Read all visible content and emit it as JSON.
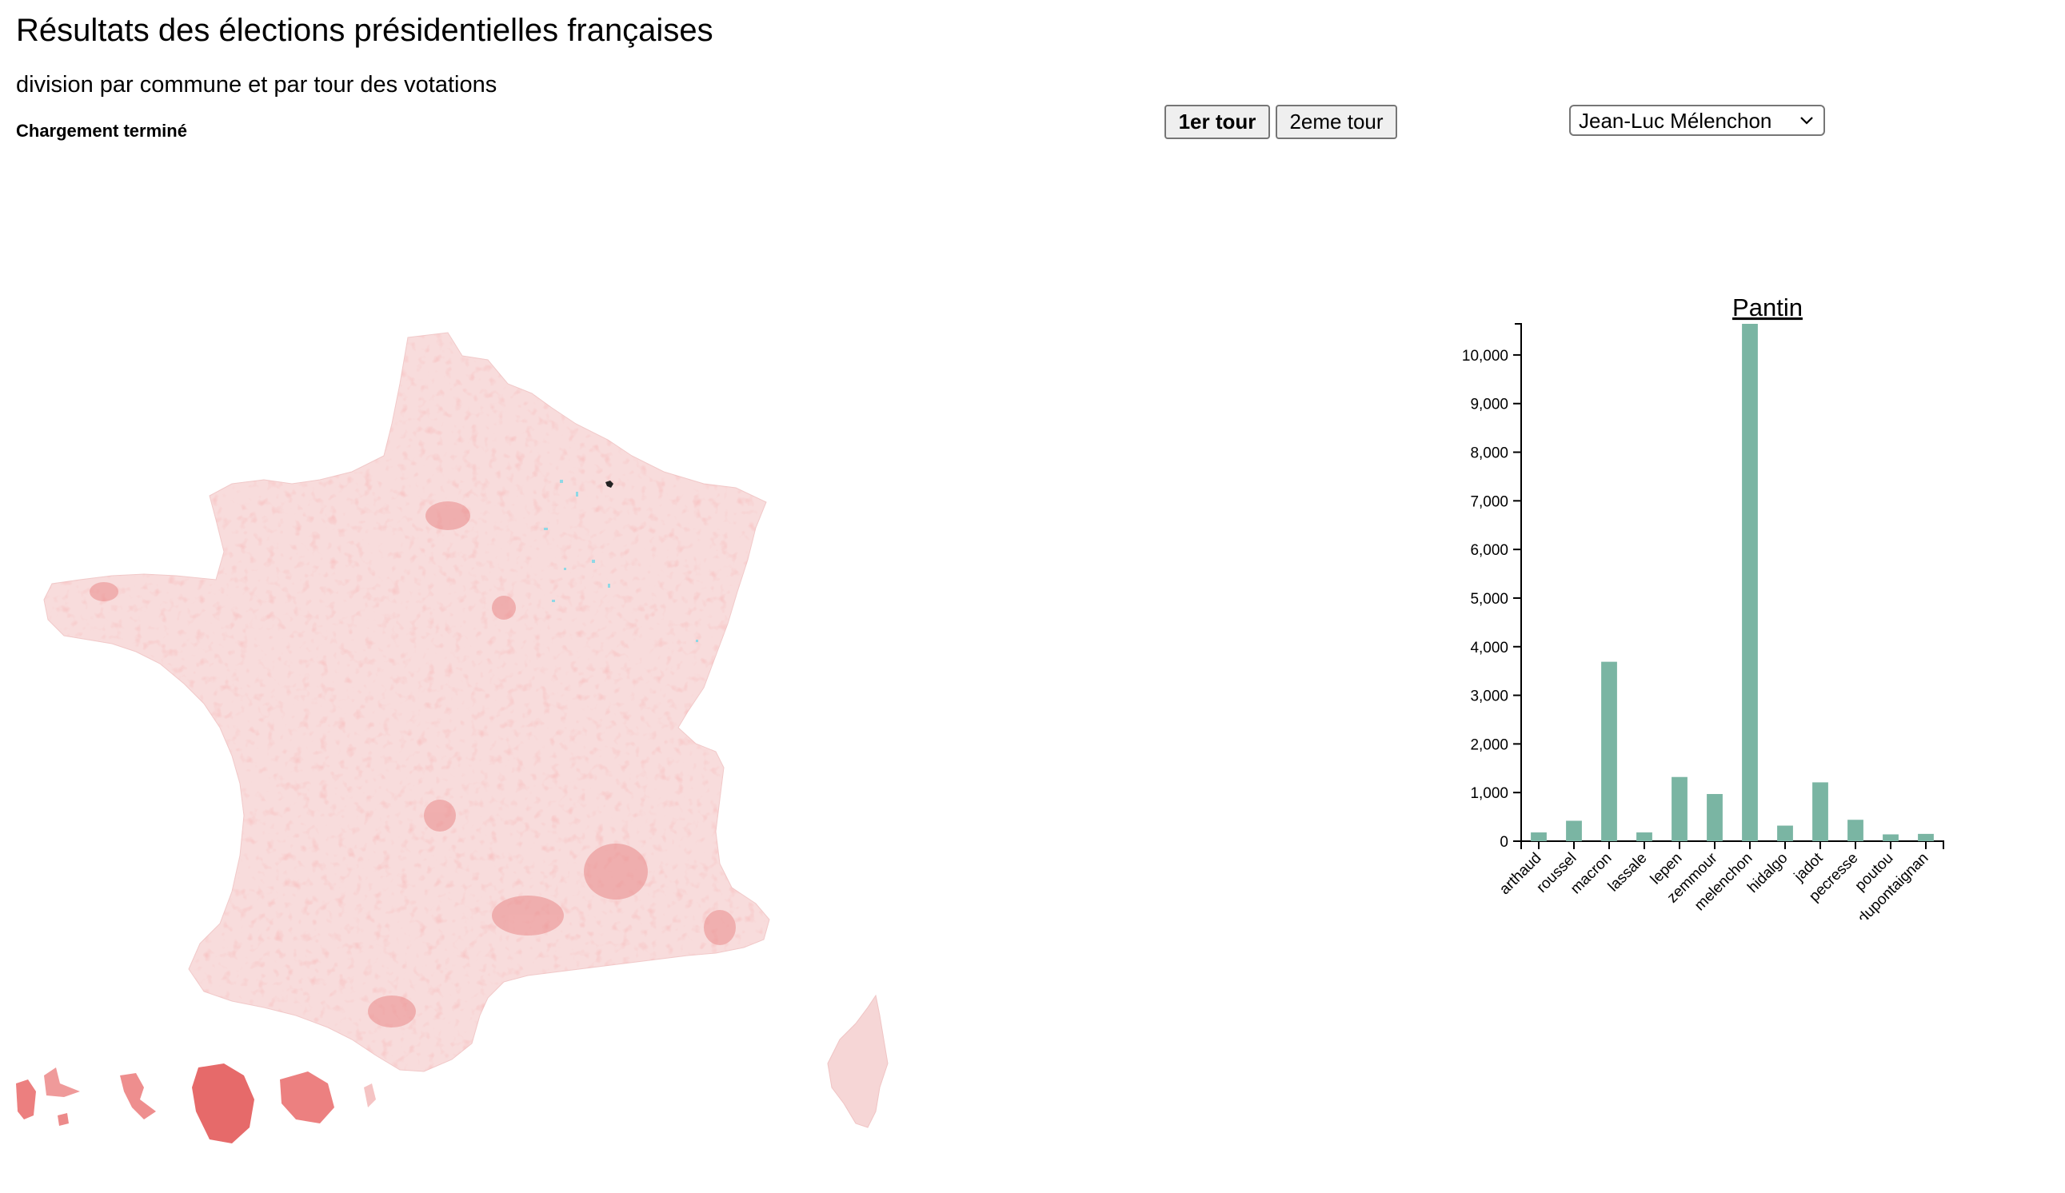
{
  "page": {
    "title": "Résultats des élections présidentielles françaises",
    "subtitle": "division par commune et par tour des votations",
    "status": "Chargement terminé"
  },
  "controls": {
    "tour1_label": "1er tour",
    "tour2_label": "2eme tour",
    "active_tour": "1er tour",
    "candidate_selected": "Jean-Luc Mélenchon"
  },
  "map": {
    "type": "choropleth",
    "color_scale": [
      "#fbeaea",
      "#e95a5a"
    ],
    "accent_color": "#8fd8e6"
  },
  "colors": {
    "bar": "#7ab5a3"
  },
  "chart_data": {
    "type": "bar",
    "title": "Pantin",
    "categories": [
      "arthaud",
      "roussel",
      "macron",
      "lassale",
      "lepen",
      "zemmour",
      "melenchon",
      "hidalgo",
      "jadot",
      "pecresse",
      "poutou",
      "dupontaignan"
    ],
    "values": [
      180,
      420,
      3690,
      180,
      1320,
      970,
      10640,
      320,
      1210,
      440,
      140,
      150
    ],
    "ylim": [
      0,
      10640
    ],
    "yticks": [
      0,
      1000,
      2000,
      3000,
      4000,
      5000,
      6000,
      7000,
      8000,
      9000,
      10000
    ],
    "xlabel": "",
    "ylabel": "",
    "grid": false
  }
}
